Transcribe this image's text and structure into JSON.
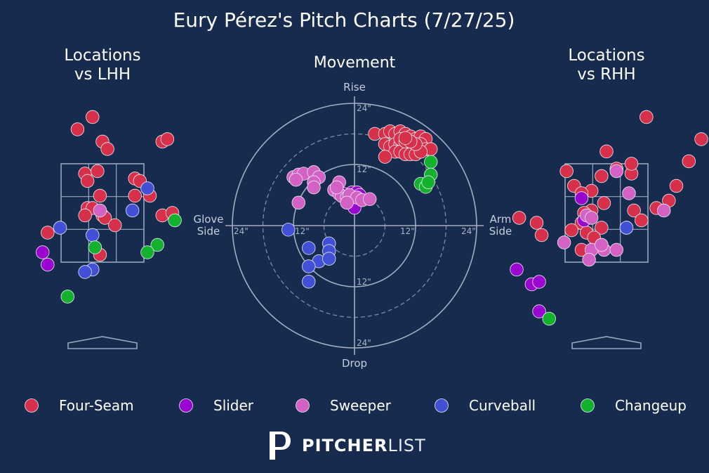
{
  "title": "Eury Pérez's Pitch Charts (7/27/25)",
  "logo": {
    "mark": "P",
    "word_bold": "PITCHER",
    "word_light": "LIST"
  },
  "colors": {
    "background": "#162b4e",
    "Four-Seam": "#d7304a",
    "Slider": "#9a06cf",
    "Sweeper": "#d462c4",
    "Curveball": "#4150d6",
    "Changeup": "#13b22c"
  },
  "chart_data": [
    {
      "type": "scatter",
      "panel": "Locations vs LHH",
      "title": "Locations\nvs LHH",
      "series": [
        {
          "name": "Four-Seam",
          "points": [
            [
              -0.2,
              4.45
            ],
            [
              -0.5,
              4.2
            ],
            [
              -0.0,
              3.95
            ],
            [
              0.1,
              3.8
            ],
            [
              1.2,
              3.95
            ],
            [
              1.3,
              4.0
            ],
            [
              -0.35,
              3.3
            ],
            [
              -0.1,
              3.35
            ],
            [
              -0.3,
              3.15
            ],
            [
              0.65,
              3.2
            ],
            [
              0.75,
              3.15
            ],
            [
              -0.05,
              2.85
            ],
            [
              0.65,
              2.85
            ],
            [
              0.95,
              2.85
            ],
            [
              -0.3,
              2.6
            ],
            [
              -0.2,
              2.6
            ],
            [
              -0.35,
              2.45
            ],
            [
              0.0,
              2.45
            ],
            [
              0.05,
              2.4
            ],
            [
              0.25,
              2.25
            ],
            [
              1.2,
              2.45
            ],
            [
              1.4,
              2.5
            ],
            [
              -1.1,
              2.1
            ],
            [
              -0.05,
              1.65
            ]
          ]
        },
        {
          "name": "Slider",
          "points": [
            [
              -1.2,
              1.7
            ],
            [
              -1.1,
              1.45
            ]
          ]
        },
        {
          "name": "Sweeper",
          "points": [
            [
              -0.05,
              2.55
            ]
          ]
        },
        {
          "name": "Curveball",
          "points": [
            [
              0.9,
              3.0
            ],
            [
              0.6,
              2.55
            ],
            [
              -0.85,
              2.2
            ],
            [
              -0.2,
              2.05
            ],
            [
              -0.2,
              1.35
            ],
            [
              -0.35,
              1.3
            ]
          ]
        },
        {
          "name": "Changeup",
          "points": [
            [
              1.45,
              2.35
            ],
            [
              1.1,
              1.85
            ],
            [
              0.9,
              1.7
            ],
            [
              -0.15,
              1.8
            ],
            [
              -0.7,
              0.8
            ]
          ]
        }
      ]
    },
    {
      "type": "scatter",
      "panel": "Movement",
      "title": "Movement",
      "axis_labels": {
        "top": "Rise",
        "bottom": "Drop",
        "left": "Glove\nSide",
        "right": "Arm\nSide"
      },
      "ring_ticks_in": [
        12,
        24
      ],
      "xlim": [
        -24,
        24
      ],
      "ylim": [
        -24,
        24
      ],
      "series": [
        {
          "name": "Four-Seam",
          "points": [
            [
              4,
              18
            ],
            [
              6,
              18
            ],
            [
              7,
              18.5
            ],
            [
              8,
              18
            ],
            [
              9,
              18.5
            ],
            [
              10,
              18
            ],
            [
              11,
              17.5
            ],
            [
              12,
              17
            ],
            [
              13,
              17.5
            ],
            [
              14,
              17
            ],
            [
              6,
              16
            ],
            [
              7,
              15.5
            ],
            [
              8,
              16
            ],
            [
              9,
              16
            ],
            [
              10,
              15.5
            ],
            [
              11,
              15.5
            ],
            [
              12,
              15
            ],
            [
              13,
              16
            ],
            [
              14,
              15
            ],
            [
              15,
              15
            ],
            [
              8,
              14.5
            ],
            [
              9,
              14.5
            ],
            [
              10,
              14
            ],
            [
              11,
              14
            ],
            [
              12,
              14
            ],
            [
              13,
              14.5
            ],
            [
              6,
              13.5
            ],
            [
              9,
              17
            ],
            [
              10,
              16.5
            ],
            [
              12,
              16
            ],
            [
              11,
              16.5
            ],
            [
              10,
              17.2
            ]
          ]
        },
        {
          "name": "Slider",
          "points": [
            [
              -2,
              6.2
            ],
            [
              -0.5,
              6.5
            ],
            [
              0.5,
              6.5
            ],
            [
              1,
              6
            ],
            [
              0,
              4.8
            ],
            [
              0,
              3.5
            ]
          ]
        },
        {
          "name": "Sweeper",
          "points": [
            [
              -12,
              9.5
            ],
            [
              -11,
              10
            ],
            [
              -10,
              10.2
            ],
            [
              -8,
              10.5
            ],
            [
              -7,
              9.5
            ],
            [
              -11.5,
              9
            ],
            [
              -8,
              8.5
            ],
            [
              -8,
              7.5
            ],
            [
              -3,
              8.5
            ],
            [
              -4,
              7
            ],
            [
              -3,
              6.2
            ],
            [
              -2.5,
              5.8
            ],
            [
              -1.5,
              5.5
            ],
            [
              -1,
              6
            ],
            [
              0.5,
              5.5
            ],
            [
              1.5,
              5
            ],
            [
              3,
              5.2
            ],
            [
              -1.5,
              4.5
            ],
            [
              -11,
              4.5
            ],
            [
              -3.5,
              7.5
            ]
          ]
        },
        {
          "name": "Curveball",
          "points": [
            [
              -13,
              -0.8
            ],
            [
              -9,
              -4.4
            ],
            [
              -5,
              -3.5
            ],
            [
              -5,
              -5
            ],
            [
              -7,
              -7
            ],
            [
              -9,
              -8
            ],
            [
              -5,
              -6.5
            ],
            [
              -9,
              -11
            ]
          ]
        },
        {
          "name": "Changeup",
          "points": [
            [
              15,
              12.5
            ],
            [
              15,
              10
            ],
            [
              13,
              8.2
            ],
            [
              14,
              7.6
            ],
            [
              14.5,
              8.5
            ]
          ]
        }
      ]
    },
    {
      "type": "scatter",
      "panel": "Locations vs RHH",
      "title": "Locations\nvs RHH",
      "series": [
        {
          "name": "Four-Seam",
          "points": [
            [
              0.8,
              4.45
            ],
            [
              1.9,
              4.0
            ],
            [
              0.0,
              3.75
            ],
            [
              0.2,
              3.4
            ],
            [
              -0.8,
              3.35
            ],
            [
              -0.1,
              3.25
            ],
            [
              -0.65,
              3.05
            ],
            [
              -0.3,
              2.95
            ],
            [
              -0.5,
              2.9
            ],
            [
              0.5,
              3.3
            ],
            [
              0.5,
              3.5
            ],
            [
              1.4,
              3.05
            ],
            [
              1.25,
              2.75
            ],
            [
              1.0,
              2.6
            ],
            [
              0.55,
              2.55
            ],
            [
              -0.05,
              2.7
            ],
            [
              -0.3,
              2.55
            ],
            [
              -0.45,
              2.5
            ],
            [
              0.7,
              2.35
            ],
            [
              -0.5,
              2.3
            ],
            [
              -0.1,
              2.2
            ],
            [
              -1.75,
              2.4
            ],
            [
              -1.4,
              2.3
            ],
            [
              -1.3,
              2.05
            ],
            [
              -0.4,
              2.1
            ],
            [
              -0.25,
              2.0
            ],
            [
              1.65,
              3.55
            ],
            [
              -0.1,
              1.85
            ],
            [
              -0.7,
              2.15
            ],
            [
              -0.5,
              1.75
            ]
          ]
        },
        {
          "name": "Slider",
          "points": [
            [
              -0.45,
              2.35
            ],
            [
              -0.5,
              2.8
            ],
            [
              -1.8,
              1.35
            ],
            [
              -1.5,
              1.05
            ],
            [
              -1.35,
              1.1
            ],
            [
              -1.35,
              0.5
            ]
          ]
        },
        {
          "name": "Sweeper",
          "points": [
            [
              0.2,
              3.35
            ],
            [
              0.45,
              2.9
            ],
            [
              0.4,
              2.2
            ],
            [
              1.15,
              2.55
            ],
            [
              -0.85,
              1.9
            ],
            [
              -0.05,
              1.75
            ],
            [
              -0.4,
              2.45
            ],
            [
              -0.3,
              1.75
            ],
            [
              -0.35,
              1.55
            ],
            [
              -0.1,
              1.85
            ],
            [
              0.2,
              1.75
            ],
            [
              -0.3,
              2.4
            ]
          ]
        },
        {
          "name": "Curveball",
          "points": [
            [
              0.4,
              2.2
            ]
          ]
        },
        {
          "name": "Changeup",
          "points": [
            [
              -1.15,
              0.35
            ]
          ]
        }
      ]
    }
  ],
  "legend": [
    {
      "name": "Four-Seam",
      "color": "#d7304a"
    },
    {
      "name": "Slider",
      "color": "#9a06cf"
    },
    {
      "name": "Sweeper",
      "color": "#d462c4"
    },
    {
      "name": "Curveball",
      "color": "#4150d6"
    },
    {
      "name": "Changeup",
      "color": "#13b22c"
    }
  ]
}
